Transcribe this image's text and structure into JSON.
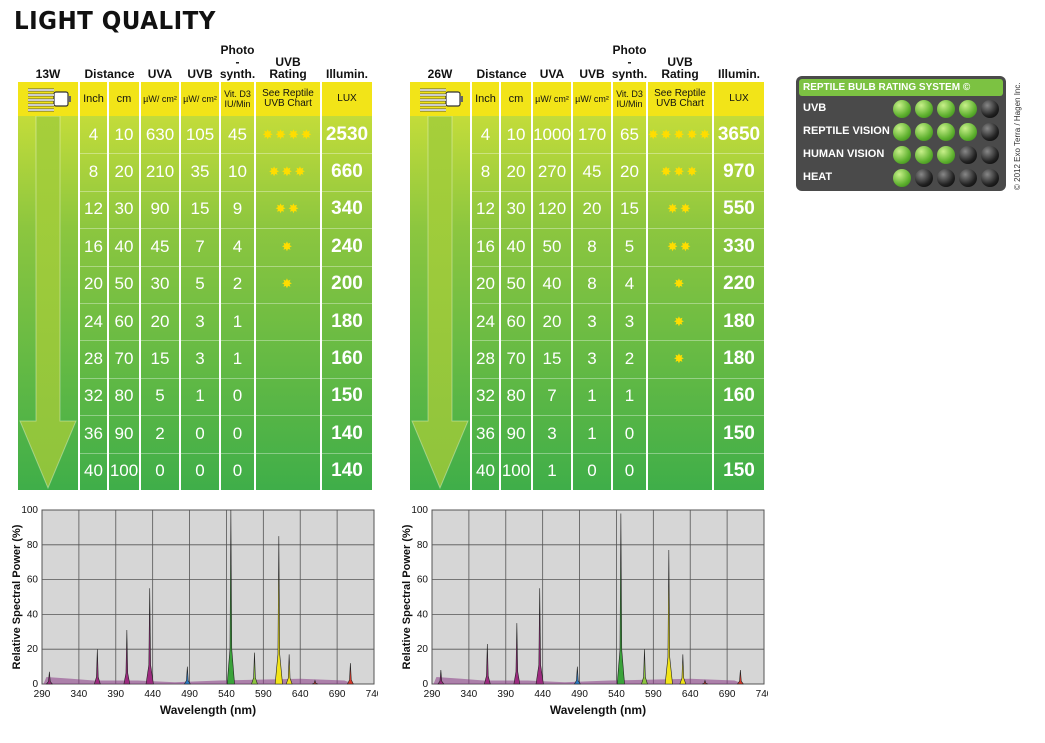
{
  "page_title": "LIGHT QUALITY",
  "headers": {
    "distance": "Distance",
    "uva": "UVA",
    "uvb": "UVB",
    "photo": "Photo -synth.",
    "uvb_rating": "UVB Rating",
    "illum": "Illumin."
  },
  "subheaders": {
    "inch": "Inch",
    "cm": "cm",
    "uva_unit": "µW/ cm²",
    "uvb_unit": "µW/ cm²",
    "vitd3": "Vit. D3 IU/Min",
    "see_chart": "See Reptile UVB Chart",
    "lux": "LUX"
  },
  "tables": [
    {
      "wattage": "13W",
      "rows": [
        {
          "inch": "4",
          "cm": "10",
          "uva": "630",
          "uvb": "105",
          "d3": "45",
          "stars": "✸✸✸✸",
          "lux": "2530"
        },
        {
          "inch": "8",
          "cm": "20",
          "uva": "210",
          "uvb": "35",
          "d3": "10",
          "stars": "✸✸✸",
          "lux": "660"
        },
        {
          "inch": "12",
          "cm": "30",
          "uva": "90",
          "uvb": "15",
          "d3": "9",
          "stars": "✸✸",
          "lux": "340"
        },
        {
          "inch": "16",
          "cm": "40",
          "uva": "45",
          "uvb": "7",
          "d3": "4",
          "stars": "✸",
          "lux": "240"
        },
        {
          "inch": "20",
          "cm": "50",
          "uva": "30",
          "uvb": "5",
          "d3": "2",
          "stars": "✸",
          "lux": "200"
        },
        {
          "inch": "24",
          "cm": "60",
          "uva": "20",
          "uvb": "3",
          "d3": "1",
          "stars": "",
          "lux": "180"
        },
        {
          "inch": "28",
          "cm": "70",
          "uva": "15",
          "uvb": "3",
          "d3": "1",
          "stars": "",
          "lux": "160"
        },
        {
          "inch": "32",
          "cm": "80",
          "uva": "5",
          "uvb": "1",
          "d3": "0",
          "stars": "",
          "lux": "150"
        },
        {
          "inch": "36",
          "cm": "90",
          "uva": "2",
          "uvb": "0",
          "d3": "0",
          "stars": "",
          "lux": "140"
        },
        {
          "inch": "40",
          "cm": "100",
          "uva": "0",
          "uvb": "0",
          "d3": "0",
          "stars": "",
          "lux": "140"
        }
      ]
    },
    {
      "wattage": "26W",
      "rows": [
        {
          "inch": "4",
          "cm": "10",
          "uva": "1000",
          "uvb": "170",
          "d3": "65",
          "stars": "✸✸✸✸✸",
          "lux": "3650"
        },
        {
          "inch": "8",
          "cm": "20",
          "uva": "270",
          "uvb": "45",
          "d3": "20",
          "stars": "✸✸✸",
          "lux": "970"
        },
        {
          "inch": "12",
          "cm": "30",
          "uva": "120",
          "uvb": "20",
          "d3": "15",
          "stars": "✸✸",
          "lux": "550"
        },
        {
          "inch": "16",
          "cm": "40",
          "uva": "50",
          "uvb": "8",
          "d3": "5",
          "stars": "✸✸",
          "lux": "330"
        },
        {
          "inch": "20",
          "cm": "50",
          "uva": "40",
          "uvb": "8",
          "d3": "4",
          "stars": "✸",
          "lux": "220"
        },
        {
          "inch": "24",
          "cm": "60",
          "uva": "20",
          "uvb": "3",
          "d3": "3",
          "stars": "✸",
          "lux": "180"
        },
        {
          "inch": "28",
          "cm": "70",
          "uva": "15",
          "uvb": "3",
          "d3": "2",
          "stars": "✸",
          "lux": "180"
        },
        {
          "inch": "32",
          "cm": "80",
          "uva": "7",
          "uvb": "1",
          "d3": "1",
          "stars": "",
          "lux": "160"
        },
        {
          "inch": "36",
          "cm": "90",
          "uva": "3",
          "uvb": "1",
          "d3": "0",
          "stars": "",
          "lux": "150"
        },
        {
          "inch": "40",
          "cm": "100",
          "uva": "1",
          "uvb": "0",
          "d3": "0",
          "stars": "",
          "lux": "150"
        }
      ]
    }
  ],
  "legend": {
    "title": "REPTILE BULB RATING SYSTEM ©",
    "rows": [
      {
        "name": "UVB",
        "on": 4
      },
      {
        "name": "REPTILE VISION",
        "on": 4
      },
      {
        "name": "HUMAN VISION",
        "on": 3
      },
      {
        "name": "HEAT",
        "on": 1
      }
    ],
    "copyright": "© 2012 Exo Terra / Hagen Inc."
  },
  "chart_data": [
    {
      "type": "area",
      "title": "",
      "xlabel": "Wavelength (nm)",
      "ylabel": "Relative Spectral Power (%)",
      "xlim": [
        290,
        740
      ],
      "ylim": [
        0,
        100
      ],
      "xticks": [
        290,
        340,
        390,
        440,
        490,
        540,
        590,
        640,
        690,
        740
      ],
      "yticks": [
        0,
        20,
        40,
        60,
        80,
        100
      ],
      "peaks": [
        {
          "x": 300,
          "y": 7,
          "color": "#9c2a7f"
        },
        {
          "x": 365,
          "y": 20,
          "color": "#9c2a7f"
        },
        {
          "x": 405,
          "y": 31,
          "color": "#9c2a7f"
        },
        {
          "x": 436,
          "y": 55,
          "color": "#9c2a7f"
        },
        {
          "x": 487,
          "y": 10,
          "color": "#2b78c2"
        },
        {
          "x": 546,
          "y": 100,
          "color": "#3aa33a"
        },
        {
          "x": 578,
          "y": 18,
          "color": "#8dc63f"
        },
        {
          "x": 611,
          "y": 85,
          "color": "#f2e418"
        },
        {
          "x": 625,
          "y": 17,
          "color": "#f2e418"
        },
        {
          "x": 660,
          "y": 2,
          "color": "#d8382a"
        },
        {
          "x": 708,
          "y": 12,
          "color": "#d8382a"
        }
      ]
    },
    {
      "type": "area",
      "title": "",
      "xlabel": "Wavelength (nm)",
      "ylabel": "Relative Spectral Power (%)",
      "xlim": [
        290,
        740
      ],
      "ylim": [
        0,
        100
      ],
      "xticks": [
        290,
        340,
        390,
        440,
        490,
        540,
        590,
        640,
        690,
        740
      ],
      "yticks": [
        0,
        20,
        40,
        60,
        80,
        100
      ],
      "peaks": [
        {
          "x": 302,
          "y": 8,
          "color": "#9c2a7f"
        },
        {
          "x": 365,
          "y": 23,
          "color": "#9c2a7f"
        },
        {
          "x": 405,
          "y": 35,
          "color": "#9c2a7f"
        },
        {
          "x": 436,
          "y": 55,
          "color": "#9c2a7f"
        },
        {
          "x": 487,
          "y": 10,
          "color": "#2b78c2"
        },
        {
          "x": 546,
          "y": 98,
          "color": "#3aa33a"
        },
        {
          "x": 578,
          "y": 20,
          "color": "#8dc63f"
        },
        {
          "x": 611,
          "y": 77,
          "color": "#f2e418"
        },
        {
          "x": 630,
          "y": 17,
          "color": "#f2e418"
        },
        {
          "x": 660,
          "y": 2,
          "color": "#d8382a"
        },
        {
          "x": 708,
          "y": 8,
          "color": "#d8382a"
        }
      ]
    }
  ]
}
